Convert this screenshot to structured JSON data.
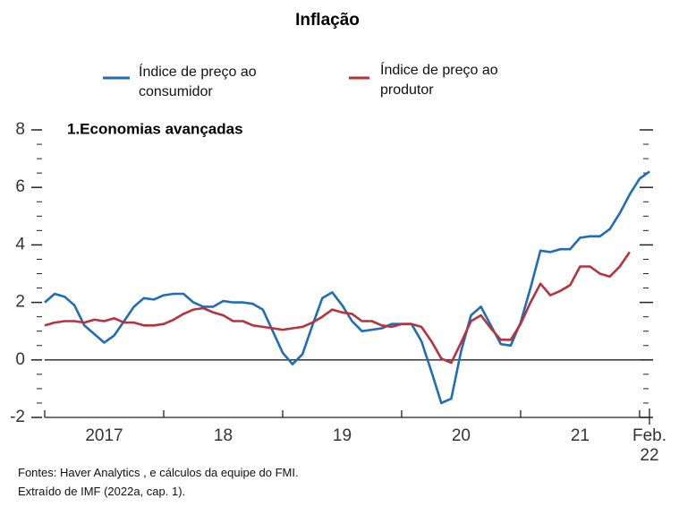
{
  "chart_data": {
    "type": "line",
    "title": "Inflação",
    "subtitle": "1.Economias avançadas",
    "notes": [
      "Fontes: Haver Analytics , e cálculos da equipe do FMI.",
      "Extraído de IMF (2022a, cap. 1)."
    ],
    "categories": [
      null,
      null,
      null,
      null,
      null,
      null,
      "2017",
      null,
      null,
      null,
      null,
      null,
      null,
      null,
      null,
      null,
      null,
      null,
      "18",
      null,
      null,
      null,
      null,
      null,
      null,
      null,
      null,
      null,
      null,
      null,
      "19",
      null,
      null,
      null,
      null,
      null,
      null,
      null,
      null,
      null,
      null,
      null,
      "20",
      null,
      null,
      null,
      null,
      null,
      null,
      null,
      null,
      null,
      null,
      null,
      "21",
      null,
      null,
      null,
      null,
      null,
      null,
      "Feb. 22"
    ],
    "series": [
      {
        "name": "Índice de preço ao consumidor",
        "color": "#1f6db5",
        "values": [
          2.0,
          2.3,
          2.2,
          1.9,
          1.2,
          0.9,
          0.6,
          0.85,
          1.35,
          1.85,
          2.15,
          2.1,
          2.25,
          2.3,
          2.3,
          2.0,
          1.85,
          1.85,
          2.05,
          2.0,
          2.0,
          1.95,
          1.75,
          1.0,
          0.25,
          -0.15,
          0.2,
          1.2,
          2.15,
          2.35,
          1.9,
          1.35,
          1.0,
          1.05,
          1.1,
          1.25,
          1.25,
          1.25,
          0.65,
          -0.4,
          -1.5,
          -1.35,
          0.3,
          1.55,
          1.85,
          1.2,
          0.55,
          0.5,
          1.3,
          2.5,
          3.8,
          3.75,
          3.85,
          3.85,
          4.25,
          4.3,
          4.3,
          4.55,
          5.1,
          5.75,
          6.3,
          6.55
        ]
      },
      {
        "name": "Índice de preço ao produtor",
        "color": "#b8323e",
        "values": [
          1.2,
          1.3,
          1.35,
          1.35,
          1.3,
          1.4,
          1.35,
          1.45,
          1.3,
          1.3,
          1.2,
          1.2,
          1.25,
          1.4,
          1.6,
          1.75,
          1.8,
          1.65,
          1.55,
          1.35,
          1.35,
          1.2,
          1.15,
          1.1,
          1.05,
          1.1,
          1.15,
          1.3,
          1.5,
          1.75,
          1.65,
          1.6,
          1.35,
          1.35,
          1.2,
          1.15,
          1.25,
          1.25,
          1.15,
          0.65,
          0.05,
          -0.1,
          0.6,
          1.35,
          1.55,
          1.1,
          0.7,
          0.7,
          1.25,
          2.0,
          2.65,
          2.25,
          2.4,
          2.6,
          3.25,
          3.25,
          3.0,
          2.9,
          3.25,
          3.75,
          null,
          null
        ]
      }
    ],
    "ylim": [
      -2,
      8
    ],
    "yticks": [
      -2,
      0,
      2,
      4,
      6,
      8
    ]
  }
}
